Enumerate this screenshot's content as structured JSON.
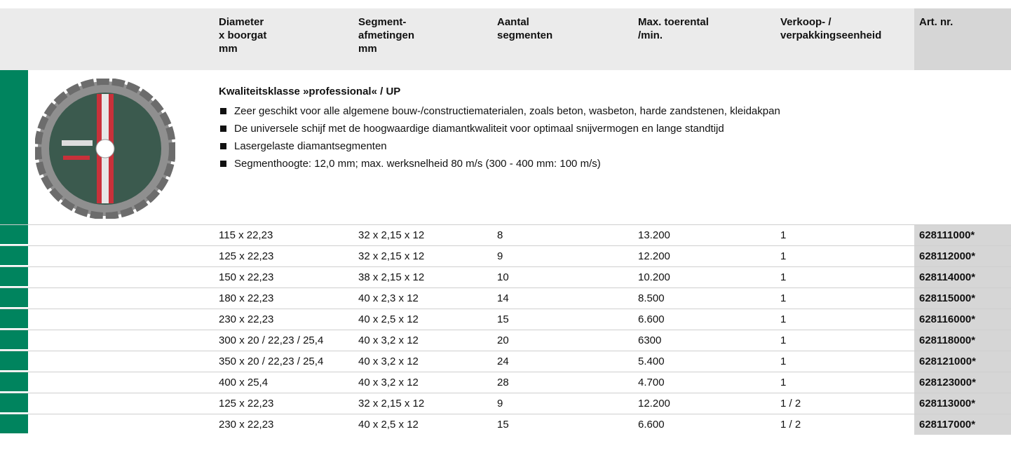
{
  "header": {
    "columns": [
      [
        "Diameter",
        "x boorgat",
        "mm"
      ],
      [
        "Segment-",
        "afmetingen",
        "mm"
      ],
      [
        "Aantal",
        "segmenten"
      ],
      [
        "Max. toerental",
        "/min."
      ],
      [
        "Verkoop- /",
        "verpakkingseenheid"
      ],
      [
        "Art. nr."
      ]
    ]
  },
  "section": {
    "title": "Kwaliteitsklasse »professional« / UP",
    "bullets": [
      "Zeer geschikt voor alle algemene bouw-/constructiematerialen, zoals beton, wasbeton, harde zandstenen, kleidakpan",
      "De universele schijf met de hoogwaardige diamantkwaliteit voor optimaal snijvermogen en lange standtijd",
      "Lasergelaste diamantsegmenten",
      "Segmenthoogte: 12,0 mm; max. werksnelheid 80 m/s (300 - 400 mm: 100 m/s)"
    ]
  },
  "table": {
    "rows": [
      [
        "115 x 22,23",
        "32 x 2,15 x 12",
        "8",
        "13.200",
        "1",
        "628111000*"
      ],
      [
        "125 x 22,23",
        "32 x 2,15 x 12",
        "9",
        "12.200",
        "1",
        "628112000*"
      ],
      [
        "150 x 22,23",
        "38 x 2,15 x 12",
        "10",
        "10.200",
        "1",
        "628114000*"
      ],
      [
        "180 x 22,23",
        "40 x 2,3 x 12",
        "14",
        "8.500",
        "1",
        "628115000*"
      ],
      [
        "230 x 22,23",
        "40 x 2,5 x 12",
        "15",
        "6.600",
        "1",
        "628116000*"
      ],
      [
        "300 x 20 / 22,23 / 25,4",
        "40 x 3,2 x 12",
        "20",
        "6300",
        "1",
        "628118000*"
      ],
      [
        "350 x 20 / 22,23 / 25,4",
        "40 x 3,2 x 12",
        "24",
        "5.400",
        "1",
        "628121000*"
      ],
      [
        "400 x 25,4",
        "40 x 3,2 x 12",
        "28",
        "4.700",
        "1",
        "628123000*"
      ],
      [
        "125 x 22,23",
        "32 x 2,15 x 12",
        "9",
        "12.200",
        "1 / 2",
        "628113000*"
      ],
      [
        "230 x 22,23",
        "40 x 2,5 x 12",
        "15",
        "6.600",
        "1 / 2",
        "628117000*"
      ]
    ]
  }
}
